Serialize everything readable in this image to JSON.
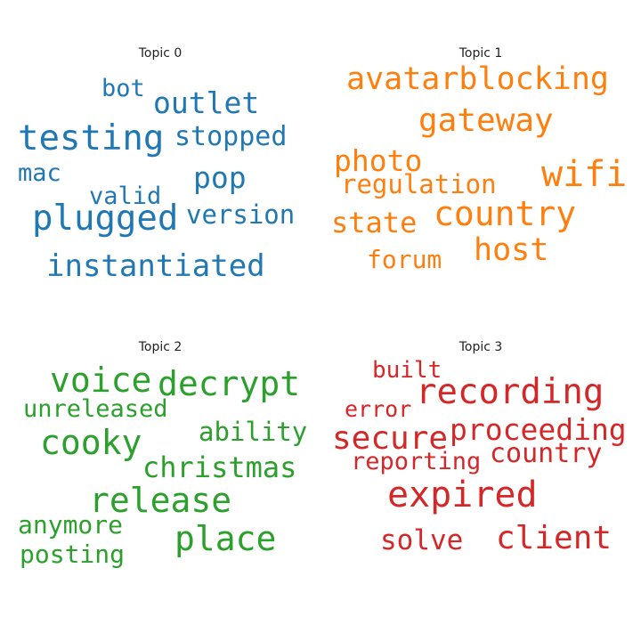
{
  "colors": {
    "topic0": "#1f77b4",
    "topic1": "#ff7f0e",
    "topic2": "#2ca02c",
    "topic3": "#d62728"
  },
  "topics": [
    {
      "title": "Topic 0",
      "words": [
        "testing",
        "plugged",
        "instantiated",
        "outlet",
        "stopped",
        "pop",
        "version",
        "bot",
        "valid",
        "mac"
      ]
    },
    {
      "title": "Topic 1",
      "words": [
        "avatarblocking",
        "gateway",
        "wifi",
        "country",
        "photo",
        "regulation",
        "state",
        "host",
        "forum"
      ]
    },
    {
      "title": "Topic 2",
      "words": [
        "voice",
        "decrypt",
        "unreleased",
        "ability",
        "cooky",
        "christmas",
        "release",
        "place",
        "anymore",
        "posting"
      ]
    },
    {
      "title": "Topic 3",
      "words": [
        "built",
        "recording",
        "error",
        "secure",
        "proceeding",
        "reporting",
        "country",
        "expired",
        "solve",
        "client"
      ]
    }
  ]
}
